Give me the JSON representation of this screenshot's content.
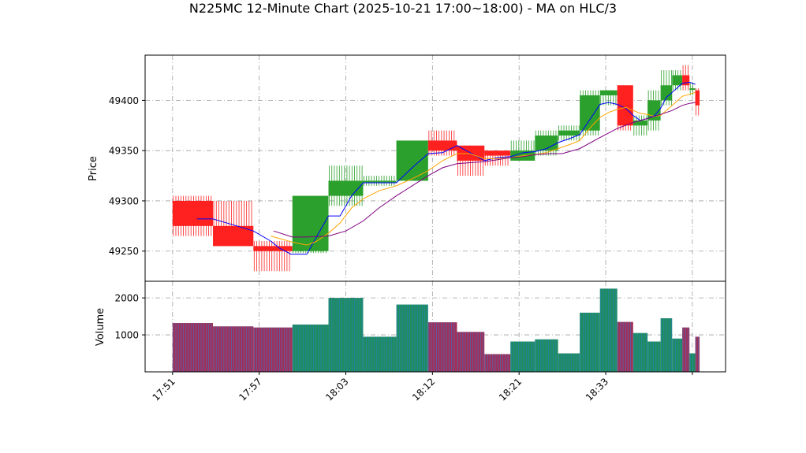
{
  "chart_data": {
    "type": "candlestick",
    "title": "N225MC 12-Minute Chart (2025-10-21 17:00~18:00) - MA on HLC/3",
    "price_panel": {
      "ylabel": "Price",
      "ylim": [
        49220,
        49445
      ],
      "yticks": [
        49250,
        49300,
        49350,
        49400
      ],
      "grid": true
    },
    "volume_panel": {
      "ylabel": "Volume",
      "ylim": [
        0,
        2450
      ],
      "yticks": [
        1000,
        2000
      ],
      "grid": true
    },
    "x_axis": {
      "ticks": [
        {
          "t": 0,
          "label": "17:51"
        },
        {
          "t": 6,
          "label": "17:57"
        },
        {
          "t": 12,
          "label": "18:03"
        },
        {
          "t": 18,
          "label": "18:12"
        },
        {
          "t": 24,
          "label": "18:21"
        },
        {
          "t": 30,
          "label": "18:33"
        },
        {
          "t": 36,
          "label": ""
        }
      ],
      "xlim": [
        -1.9,
        38.3
      ]
    },
    "colors": {
      "up": "#2ca02c",
      "down": "#ff2020",
      "volume_up": "#1f8c5e",
      "volume_down": "#a0305a",
      "volume_edge": "#2a7fd4",
      "ma_short": "#0000ff",
      "ma_mid": "#ffa500",
      "ma_long": "#800080"
    },
    "bars": [
      {
        "t0": 0.0,
        "t1": 2.8,
        "open": 49300,
        "close": 49275,
        "high": 49305,
        "low": 49265,
        "volume": 1320
      },
      {
        "t0": 2.8,
        "t1": 5.6,
        "open": 49275,
        "close": 49255,
        "high": 49300,
        "low": 49255,
        "volume": 1230
      },
      {
        "t0": 5.6,
        "t1": 8.3,
        "open": 49255,
        "close": 49250,
        "high": 49260,
        "low": 49230,
        "volume": 1200
      },
      {
        "t0": 8.3,
        "t1": 10.8,
        "open": 49250,
        "close": 49305,
        "high": 49305,
        "low": 49248,
        "volume": 1280
      },
      {
        "t0": 10.8,
        "t1": 13.2,
        "open": 49305,
        "close": 49320,
        "high": 49335,
        "low": 49295,
        "volume": 2000
      },
      {
        "t0": 13.2,
        "t1": 15.5,
        "open": 49320,
        "close": 49320,
        "high": 49325,
        "low": 49315,
        "volume": 950
      },
      {
        "t0": 15.5,
        "t1": 17.7,
        "open": 49320,
        "close": 49360,
        "high": 49360,
        "low": 49320,
        "volume": 1820
      },
      {
        "t0": 17.7,
        "t1": 19.7,
        "open": 49360,
        "close": 49350,
        "high": 49370,
        "low": 49345,
        "volume": 1340
      },
      {
        "t0": 19.7,
        "t1": 21.6,
        "open": 49355,
        "close": 49340,
        "high": 49355,
        "low": 49325,
        "volume": 1080
      },
      {
        "t0": 21.6,
        "t1": 23.4,
        "open": 49350,
        "close": 49345,
        "high": 49350,
        "low": 49335,
        "volume": 480
      },
      {
        "t0": 23.4,
        "t1": 25.1,
        "open": 49340,
        "close": 49350,
        "high": 49360,
        "low": 49340,
        "volume": 820
      },
      {
        "t0": 25.1,
        "t1": 26.7,
        "open": 49350,
        "close": 49365,
        "high": 49370,
        "low": 49345,
        "volume": 880
      },
      {
        "t0": 26.7,
        "t1": 28.2,
        "open": 49365,
        "close": 49370,
        "high": 49375,
        "low": 49360,
        "volume": 500
      },
      {
        "t0": 28.2,
        "t1": 29.6,
        "open": 49370,
        "close": 49405,
        "high": 49410,
        "low": 49365,
        "volume": 1600
      },
      {
        "t0": 29.6,
        "t1": 30.8,
        "open": 49405,
        "close": 49410,
        "high": 49410,
        "low": 49395,
        "volume": 2250
      },
      {
        "t0": 30.8,
        "t1": 31.9,
        "open": 49415,
        "close": 49375,
        "high": 49415,
        "low": 49370,
        "volume": 1350
      },
      {
        "t0": 31.9,
        "t1": 32.9,
        "open": 49375,
        "close": 49380,
        "high": 49385,
        "low": 49365,
        "volume": 1050
      },
      {
        "t0": 32.9,
        "t1": 33.8,
        "open": 49380,
        "close": 49400,
        "high": 49410,
        "low": 49370,
        "volume": 820
      },
      {
        "t0": 33.8,
        "t1": 34.6,
        "open": 49400,
        "close": 49415,
        "high": 49430,
        "low": 49395,
        "volume": 1450
      },
      {
        "t0": 34.6,
        "t1": 35.3,
        "open": 49415,
        "close": 49425,
        "high": 49430,
        "low": 49410,
        "volume": 900
      },
      {
        "t0": 35.3,
        "t1": 35.8,
        "open": 49425,
        "close": 49415,
        "high": 49435,
        "low": 49410,
        "volume": 1200
      },
      {
        "t0": 35.8,
        "t1": 36.2,
        "open": 49412,
        "close": 49412,
        "high": 49418,
        "low": 49405,
        "volume": 500
      },
      {
        "t0": 36.2,
        "t1": 36.5,
        "open": 49410,
        "close": 49395,
        "high": 49412,
        "low": 49385,
        "volume": 950
      }
    ],
    "series": [
      {
        "key": "ma_short",
        "points": [
          [
            1.7,
            49282
          ],
          [
            2.8,
            49282
          ],
          [
            4.0,
            49277
          ],
          [
            5.6,
            49270
          ],
          [
            6.8,
            49260
          ],
          [
            7.4,
            49253
          ],
          [
            8.2,
            49247
          ],
          [
            9.3,
            49247
          ],
          [
            10.0,
            49265
          ],
          [
            10.8,
            49285
          ],
          [
            11.6,
            49285
          ],
          [
            12.4,
            49305
          ],
          [
            13.2,
            49318
          ],
          [
            14.3,
            49318
          ],
          [
            15.5,
            49318
          ],
          [
            16.6,
            49333
          ],
          [
            17.7,
            49347
          ],
          [
            18.7,
            49348
          ],
          [
            19.7,
            49355
          ],
          [
            20.6,
            49348
          ],
          [
            21.6,
            49340
          ],
          [
            22.5,
            49343
          ],
          [
            23.4,
            49344
          ],
          [
            24.3,
            49348
          ],
          [
            25.1,
            49349
          ],
          [
            25.9,
            49352
          ],
          [
            26.7,
            49358
          ],
          [
            27.5,
            49362
          ],
          [
            28.2,
            49366
          ],
          [
            29.0,
            49383
          ],
          [
            29.6,
            49396
          ],
          [
            30.2,
            49398
          ],
          [
            30.8,
            49396
          ],
          [
            31.4,
            49392
          ],
          [
            31.9,
            49385
          ],
          [
            32.4,
            49380
          ],
          [
            32.9,
            49382
          ],
          [
            33.4,
            49385
          ],
          [
            33.8,
            49392
          ],
          [
            34.2,
            49403
          ],
          [
            34.6,
            49408
          ],
          [
            35.0,
            49413
          ],
          [
            35.3,
            49417
          ],
          [
            35.8,
            49418
          ],
          [
            36.2,
            49416
          ]
        ]
      },
      {
        "key": "ma_mid",
        "points": [
          [
            6.8,
            49265
          ],
          [
            8.3,
            49259
          ],
          [
            9.3,
            49256
          ],
          [
            10.0,
            49260
          ],
          [
            10.8,
            49268
          ],
          [
            11.6,
            49278
          ],
          [
            12.4,
            49293
          ],
          [
            13.2,
            49302
          ],
          [
            14.3,
            49310
          ],
          [
            15.5,
            49315
          ],
          [
            16.6,
            49322
          ],
          [
            17.7,
            49330
          ],
          [
            18.7,
            49340
          ],
          [
            19.7,
            49347
          ],
          [
            20.6,
            49347
          ],
          [
            21.6,
            49342
          ],
          [
            22.5,
            49342
          ],
          [
            23.4,
            49343
          ],
          [
            24.3,
            49345
          ],
          [
            25.1,
            49346
          ],
          [
            25.9,
            49348
          ],
          [
            26.7,
            49352
          ],
          [
            27.5,
            49356
          ],
          [
            28.2,
            49360
          ],
          [
            29.0,
            49374
          ],
          [
            29.6,
            49383
          ],
          [
            30.2,
            49388
          ],
          [
            30.8,
            49391
          ],
          [
            31.4,
            49393
          ],
          [
            31.9,
            49390
          ],
          [
            32.4,
            49387
          ],
          [
            32.9,
            49386
          ],
          [
            33.4,
            49384
          ],
          [
            33.8,
            49385
          ],
          [
            34.2,
            49390
          ],
          [
            34.6,
            49395
          ],
          [
            35.0,
            49400
          ],
          [
            35.3,
            49404
          ],
          [
            35.8,
            49406
          ],
          [
            36.2,
            49408
          ]
        ]
      },
      {
        "key": "ma_long",
        "points": [
          [
            7.0,
            49270
          ],
          [
            8.3,
            49264
          ],
          [
            9.3,
            49264
          ],
          [
            10.8,
            49265
          ],
          [
            12.0,
            49270
          ],
          [
            13.2,
            49280
          ],
          [
            14.3,
            49293
          ],
          [
            15.5,
            49305
          ],
          [
            16.6,
            49315
          ],
          [
            17.7,
            49325
          ],
          [
            18.7,
            49333
          ],
          [
            19.7,
            49337
          ],
          [
            20.6,
            49338
          ],
          [
            21.6,
            49339
          ],
          [
            22.5,
            49341
          ],
          [
            23.4,
            49343
          ],
          [
            24.3,
            49344
          ],
          [
            25.1,
            49346
          ],
          [
            26.2,
            49347
          ],
          [
            27.0,
            49347
          ],
          [
            28.2,
            49352
          ],
          [
            29.6,
            49363
          ],
          [
            30.8,
            49372
          ],
          [
            31.9,
            49378
          ],
          [
            32.9,
            49382
          ],
          [
            33.8,
            49386
          ],
          [
            34.6,
            49390
          ],
          [
            35.3,
            49395
          ],
          [
            35.8,
            49397
          ],
          [
            36.2,
            49398
          ]
        ]
      }
    ]
  }
}
